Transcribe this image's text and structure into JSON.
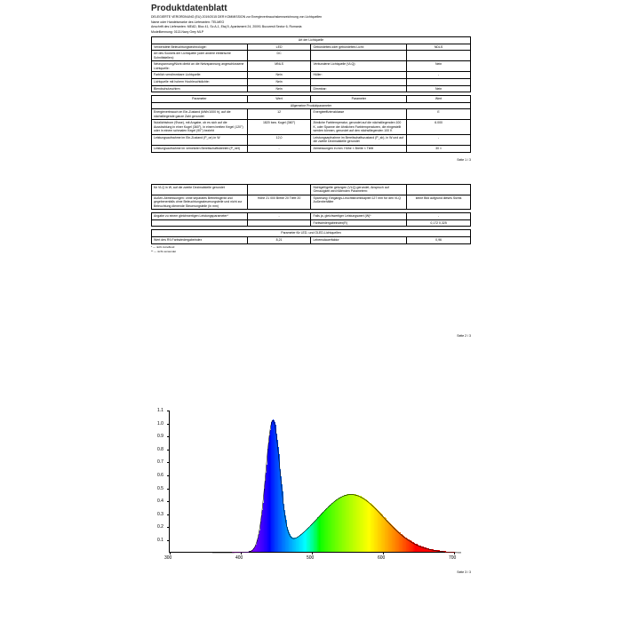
{
  "title": "Produktdatenblatt",
  "regulation": "DELEGIERTE VERORDNUNG (EU) 2019/2015 DER KOMMISSION zur Energieverbrauchskennzeichnung von Lichtquellen",
  "supplier_label": "Name oder Handelsmarke des Lieferanten:",
  "supplier": "TELMEO",
  "address_label": "Anschrift des Lieferanten:",
  "address": "MEAD, Bloc 41, Sc A-1, Etaj 5, Apartament 24, 20091 Bucuresti Sector 6, Romania",
  "model_label": "Modellkennung:",
  "model": "0113-Navy Grey MLP",
  "sect1": "Art der Lichtquelle",
  "rows1": [
    [
      "Verwendete Beleuchtungstechnologie:",
      "LED",
      "Gebündeltes oder gebündeltes Licht:",
      "NDLS"
    ],
    [
      "Art des Sockels der Lichtquelle (oder andere elektrische Schnittstellen):",
      "DC",
      "",
      ""
    ],
    [
      "Netzspannung/Nicht direkt an die Netzspannung angeschlossene Lichtquelle:",
      "MNLS",
      "Verbundene Lichtquelle (VLQ):",
      "Nein"
    ],
    [
      "Farblich verstimmbare Lichtquelle:",
      "Nein",
      "Hüller:",
      "-"
    ],
    [
      "Lichtquelle mit hohem Hochleuchtdichte:",
      "Nein",
      "",
      ""
    ],
    [
      "Blendschutzschirm:",
      "Nein",
      "Dimmbar:",
      "Nein"
    ]
  ],
  "sect2_head": [
    "Parameter",
    "Wert",
    "Parameter",
    "Wert"
  ],
  "sect2_title": "Allgemeine Produktparameter",
  "rows2": [
    [
      "Energieverbrauch im Ein-Zustand (kWh/1000 h), auf die nächstliegende ganze Zahl gerundet",
      "12",
      "Energieeffizienzklasse",
      "E"
    ],
    [
      "Nutzlichtstrom (Φuse), mit Angabe, ob es sich auf die Ausstrahlung in einer Kugel (360°), in einem breiten Kegel (120°) oder in einem schmalen Kegel (90°) bezieht",
      "1820 bzw. Kugel (360°)",
      "Ähnliche Farbtemperatur, gerundet auf die nächstliegenden 100 K, oder Spanne der ähnlichen Farbtemperaturen, die eingestellt werden können, gerundet auf den nächstliegenden 100 K",
      "6.000"
    ],
    [
      "Leistungsaufnahme im Ein-Zustand (P_on) in W",
      "12,0",
      "Leistungsaufnahme im Bereitschaftszustand (P_sb), in W und auf die zweite Dezimalstelle gerundet",
      "-"
    ],
    [
      "Leistungsaufnahme im vernetzten Bereitschaftsbetrieb (P_net)",
      "-",
      "Abmessungen in mm: Höhe × Breite × Tiefe",
      "30 ×"
    ]
  ],
  "rows3": [
    [
      "für VLQ in W, auf die zweite Dezimalstelle gerundet",
      "",
      "Nichtgefügelte gelungen (VLQ) gerundet, Anspruch auf Genauigkeit wird füllenden Parametern:",
      ""
    ],
    [
      "Außen-Abmessungen: ohne separates Betriebsgerät und gegebenenfalls ohne Beleuchtungssteuerungsteile und nicht zur Beleuchtung dienende Steuerungsteile (in mm)",
      "Höhe 21 000  Breite 20  Tiefe 20",
      "Spannung: Eingangs-Leuchtstrombkapitel 127 mm für den VLQ Außenbehälter",
      "keine Bild aufgrund dieses Sichts"
    ]
  ],
  "rows4": [
    [
      "Angabe zu einem gleichwertigen Leistungsparameter*",
      "-",
      "Falls ja, gleichwertiger Leistungswert (W)*",
      "-"
    ],
    [
      "",
      "",
      "Farbwiedergabeindex(R)",
      "0,172  0,325"
    ]
  ],
  "sect3_title": "Parameter für LED- und OLED-Lichtquellen",
  "rows5": [
    [
      "Wert des R9-Farbwiedergabeindex",
      "8,21",
      "Lebensdauerfaktor",
      "0,96"
    ]
  ],
  "foot1": "* — nicht zutreffend",
  "foot2": "** — nicht verwendet",
  "p1foot": "Seite 1 / 3",
  "p2foot": "Seite 2 / 3",
  "p3foot": "Seite 3 / 3",
  "chart": {
    "xticks": [
      300,
      400,
      500,
      600,
      700
    ],
    "yticks": [
      0.1,
      0.2,
      0.3,
      0.4,
      0.5,
      0.6,
      0.7,
      0.8,
      0.9,
      1.0,
      1.1
    ],
    "xlim": [
      300,
      700
    ],
    "ylim": [
      0,
      1.1
    ]
  }
}
